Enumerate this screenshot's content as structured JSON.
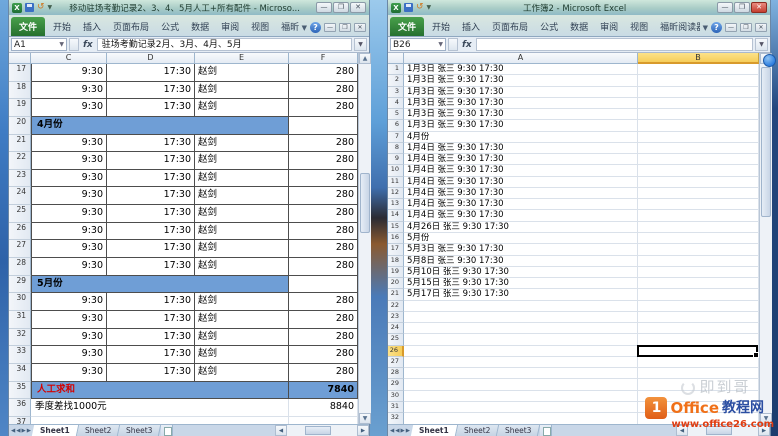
{
  "left_window": {
    "title": "移动驻场考勤记录2、3、4、5月人工+所有配件 - Microso...",
    "ribbon_tabs": [
      "文件",
      "开始",
      "插入",
      "页面布局",
      "公式",
      "数据",
      "审阅",
      "视图",
      "福昕阅读器",
      "Acrobat"
    ],
    "name_box": "A1",
    "fx_label": "fx",
    "formula_text": "驻场考勤记录2月、3月、4月、5月",
    "columns": [
      "C",
      "D",
      "E",
      "F"
    ],
    "grid_rows": [
      {
        "n": 17,
        "type": "data",
        "c": "9:30",
        "d": "17:30",
        "e": "赵剑",
        "f": "280"
      },
      {
        "n": 18,
        "type": "data",
        "c": "9:30",
        "d": "17:30",
        "e": "赵剑",
        "f": "280"
      },
      {
        "n": 19,
        "type": "data",
        "c": "9:30",
        "d": "17:30",
        "e": "赵剑",
        "f": "280"
      },
      {
        "n": 20,
        "type": "section",
        "label": "4月份"
      },
      {
        "n": 21,
        "type": "data",
        "c": "9:30",
        "d": "17:30",
        "e": "赵剑",
        "f": "280"
      },
      {
        "n": 22,
        "type": "data",
        "c": "9:30",
        "d": "17:30",
        "e": "赵剑",
        "f": "280"
      },
      {
        "n": 23,
        "type": "data",
        "c": "9:30",
        "d": "17:30",
        "e": "赵剑",
        "f": "280"
      },
      {
        "n": 24,
        "type": "data",
        "c": "9:30",
        "d": "17:30",
        "e": "赵剑",
        "f": "280"
      },
      {
        "n": 25,
        "type": "data",
        "c": "9:30",
        "d": "17:30",
        "e": "赵剑",
        "f": "280"
      },
      {
        "n": 26,
        "type": "data",
        "c": "9:30",
        "d": "17:30",
        "e": "赵剑",
        "f": "280"
      },
      {
        "n": 27,
        "type": "data",
        "c": "9:30",
        "d": "17:30",
        "e": "赵剑",
        "f": "280"
      },
      {
        "n": 28,
        "type": "data",
        "c": "9:30",
        "d": "17:30",
        "e": "赵剑",
        "f": "280"
      },
      {
        "n": 29,
        "type": "section",
        "label": "5月份"
      },
      {
        "n": 30,
        "type": "data",
        "c": "9:30",
        "d": "17:30",
        "e": "赵剑",
        "f": "280"
      },
      {
        "n": 31,
        "type": "data",
        "c": "9:30",
        "d": "17:30",
        "e": "赵剑",
        "f": "280"
      },
      {
        "n": 32,
        "type": "data",
        "c": "9:30",
        "d": "17:30",
        "e": "赵剑",
        "f": "280"
      },
      {
        "n": 33,
        "type": "data",
        "c": "9:30",
        "d": "17:30",
        "e": "赵剑",
        "f": "280"
      },
      {
        "n": 34,
        "type": "data",
        "c": "9:30",
        "d": "17:30",
        "e": "赵剑",
        "f": "280"
      },
      {
        "n": 35,
        "type": "total",
        "label": "人工求和",
        "f": "7840"
      },
      {
        "n": 36,
        "type": "note",
        "label": "季度差找1000元",
        "f": "8840"
      },
      {
        "n": 37,
        "type": "empty"
      }
    ],
    "sheet_tabs": [
      "Sheet1",
      "Sheet2",
      "Sheet3"
    ]
  },
  "right_window": {
    "title": "工作簿2 - Microsoft Excel",
    "ribbon_tabs": [
      "文件",
      "开始",
      "插入",
      "页面布局",
      "公式",
      "数据",
      "审阅",
      "视图",
      "福昕阅读器",
      "Acrobat"
    ],
    "name_box": "B26",
    "fx_label": "fx",
    "formula_text": "",
    "columns": [
      "A",
      "B"
    ],
    "selected_column": "B",
    "selected_cell": "B26",
    "selected_row": 26,
    "row_count": 32,
    "cells_a": {
      "1": "1月3日 张三 9:30 17:30",
      "2": "1月3日 张三 9:30 17:30",
      "3": "1月3日 张三 9:30 17:30",
      "4": "1月3日 张三 9:30 17:30",
      "5": "1月3日 张三 9:30 17:30",
      "6": "1月3日 张三 9:30 17:30",
      "7": "4月份",
      "8": "1月4日 张三 9:30 17:30",
      "9": "1月4日 张三 9:30 17:30",
      "10": "1月4日 张三 9:30 17:30",
      "11": "1月4日 张三 9:30 17:30",
      "12": "1月4日 张三 9:30 17:30",
      "13": "1月4日 张三 9:30 17:30",
      "14": "1月4日 张三 9:30 17:30",
      "15": "4月26日 张三 9:30 17:30",
      "16": "5月份",
      "17": "5月3日 张三 9:30 17:30",
      "18": "5月8日 张三 9:30 17:30",
      "19": "5月10日 张三 9:30 17:30",
      "20": "5月15日 张三 9:30 17:30",
      "21": "5月17日 张三 9:30 17:30"
    },
    "sheet_tabs": [
      "Sheet1",
      "Sheet2",
      "Sheet3"
    ]
  },
  "watermark": {
    "brand_faint": "即到哥",
    "logo_glyph": "1",
    "site_en": "Office",
    "site_cn": "教程网",
    "url": "www.office26.com"
  },
  "colors": {
    "section_fill": "#6f9ed6",
    "total_text": "#d40000",
    "selected_header": "#f6cd5a",
    "file_tab_green": "#2f8a3a",
    "close_button_red": "#c43e2f"
  }
}
